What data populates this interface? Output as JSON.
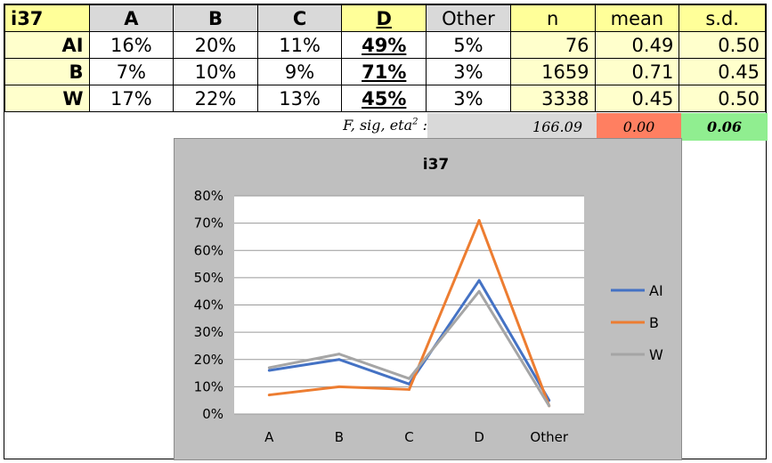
{
  "table": {
    "corner": "i37",
    "headers": [
      "A",
      "B",
      "C",
      "D",
      "Other",
      "n",
      "mean",
      "s.d."
    ],
    "rows": [
      {
        "label": "AI",
        "cells": [
          "16%",
          "20%",
          "11%",
          "49%",
          "5%",
          "76",
          "0.49",
          "0.50"
        ]
      },
      {
        "label": "B",
        "cells": [
          "7%",
          "10%",
          "9%",
          "71%",
          "3%",
          "1659",
          "0.71",
          "0.45"
        ]
      },
      {
        "label": "W",
        "cells": [
          "17%",
          "22%",
          "13%",
          "45%",
          "3%",
          "3338",
          "0.45",
          "0.50"
        ]
      }
    ]
  },
  "stats": {
    "label": "F, sig, eta",
    "label_sup": "2",
    "label_suffix": " :",
    "f": "166.09",
    "sig": "0.00",
    "eta": "0.06"
  },
  "colors": {
    "AI": "#4472c4",
    "B": "#ed7d31",
    "W": "#a5a5a5",
    "sig_fill": "#ff7f61",
    "eta_fill": "#90ee90"
  },
  "chart_data": {
    "type": "line",
    "title": "i37",
    "categories": [
      "A",
      "B",
      "C",
      "D",
      "Other"
    ],
    "series": [
      {
        "name": "AI",
        "values": [
          16,
          20,
          11,
          49,
          5
        ]
      },
      {
        "name": "B",
        "values": [
          7,
          10,
          9,
          71,
          3
        ]
      },
      {
        "name": "W",
        "values": [
          17,
          22,
          13,
          45,
          3
        ]
      }
    ],
    "ylim": [
      0,
      80
    ],
    "yticks": [
      "0%",
      "10%",
      "20%",
      "30%",
      "40%",
      "50%",
      "60%",
      "70%",
      "80%"
    ],
    "grid": true,
    "legend": "right"
  }
}
